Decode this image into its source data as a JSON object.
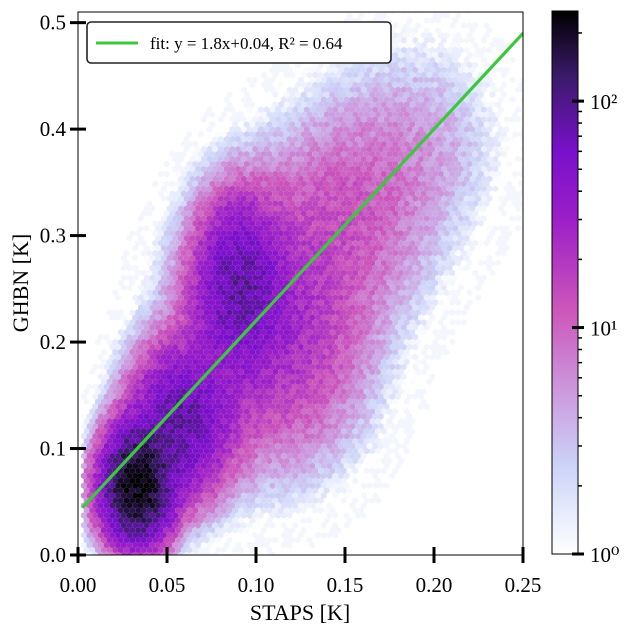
{
  "chart_data": {
    "type": "hexbin",
    "xlabel": "STAPS [K]",
    "ylabel": "GHBN [K]",
    "xlim": [
      0.0,
      0.25
    ],
    "ylim": [
      0.0,
      0.51
    ],
    "x_ticks": [
      {
        "value": 0.0,
        "label": "0.00"
      },
      {
        "value": 0.05,
        "label": "0.05"
      },
      {
        "value": 0.1,
        "label": "0.10"
      },
      {
        "value": 0.15,
        "label": "0.15"
      },
      {
        "value": 0.2,
        "label": "0.20"
      },
      {
        "value": 0.25,
        "label": "0.25"
      }
    ],
    "y_ticks": [
      {
        "value": 0.0,
        "label": "0.0"
      },
      {
        "value": 0.1,
        "label": "0.1"
      },
      {
        "value": 0.2,
        "label": "0.2"
      },
      {
        "value": 0.3,
        "label": "0.3"
      },
      {
        "value": 0.4,
        "label": "0.4"
      },
      {
        "value": 0.5,
        "label": "0.5"
      }
    ],
    "fit_line": {
      "label": "fit: y = 1.8x+0.04, R² = 0.64",
      "slope": 1.8,
      "intercept": 0.04,
      "x_range": [
        0.003,
        0.25
      ],
      "color": "#3cc83c"
    },
    "legend_position": "top-left",
    "colorbar": {
      "scale": "log",
      "range": [
        1,
        250
      ],
      "ticks": [
        {
          "value": 1,
          "label": "10⁰"
        },
        {
          "value": 10,
          "label": "10¹"
        },
        {
          "value": 100,
          "label": "10²"
        }
      ],
      "colormap": [
        "#ffffff",
        "#ccd4f8",
        "#cc99dd",
        "#cc55bb",
        "#9a1ec8",
        "#7a10cc",
        "#3a1a6a",
        "#000000"
      ]
    },
    "density_clusters": [
      {
        "x": 0.033,
        "y": 0.065,
        "sx": 0.011,
        "sy": 0.03,
        "peak": 240
      },
      {
        "x": 0.058,
        "y": 0.125,
        "sx": 0.016,
        "sy": 0.04,
        "peak": 80
      },
      {
        "x": 0.09,
        "y": 0.255,
        "sx": 0.014,
        "sy": 0.045,
        "peak": 70
      },
      {
        "x": 0.11,
        "y": 0.21,
        "sx": 0.03,
        "sy": 0.07,
        "peak": 25
      },
      {
        "x": 0.15,
        "y": 0.32,
        "sx": 0.03,
        "sy": 0.06,
        "peak": 10
      },
      {
        "x": 0.19,
        "y": 0.39,
        "sx": 0.03,
        "sy": 0.06,
        "peak": 4
      }
    ]
  }
}
